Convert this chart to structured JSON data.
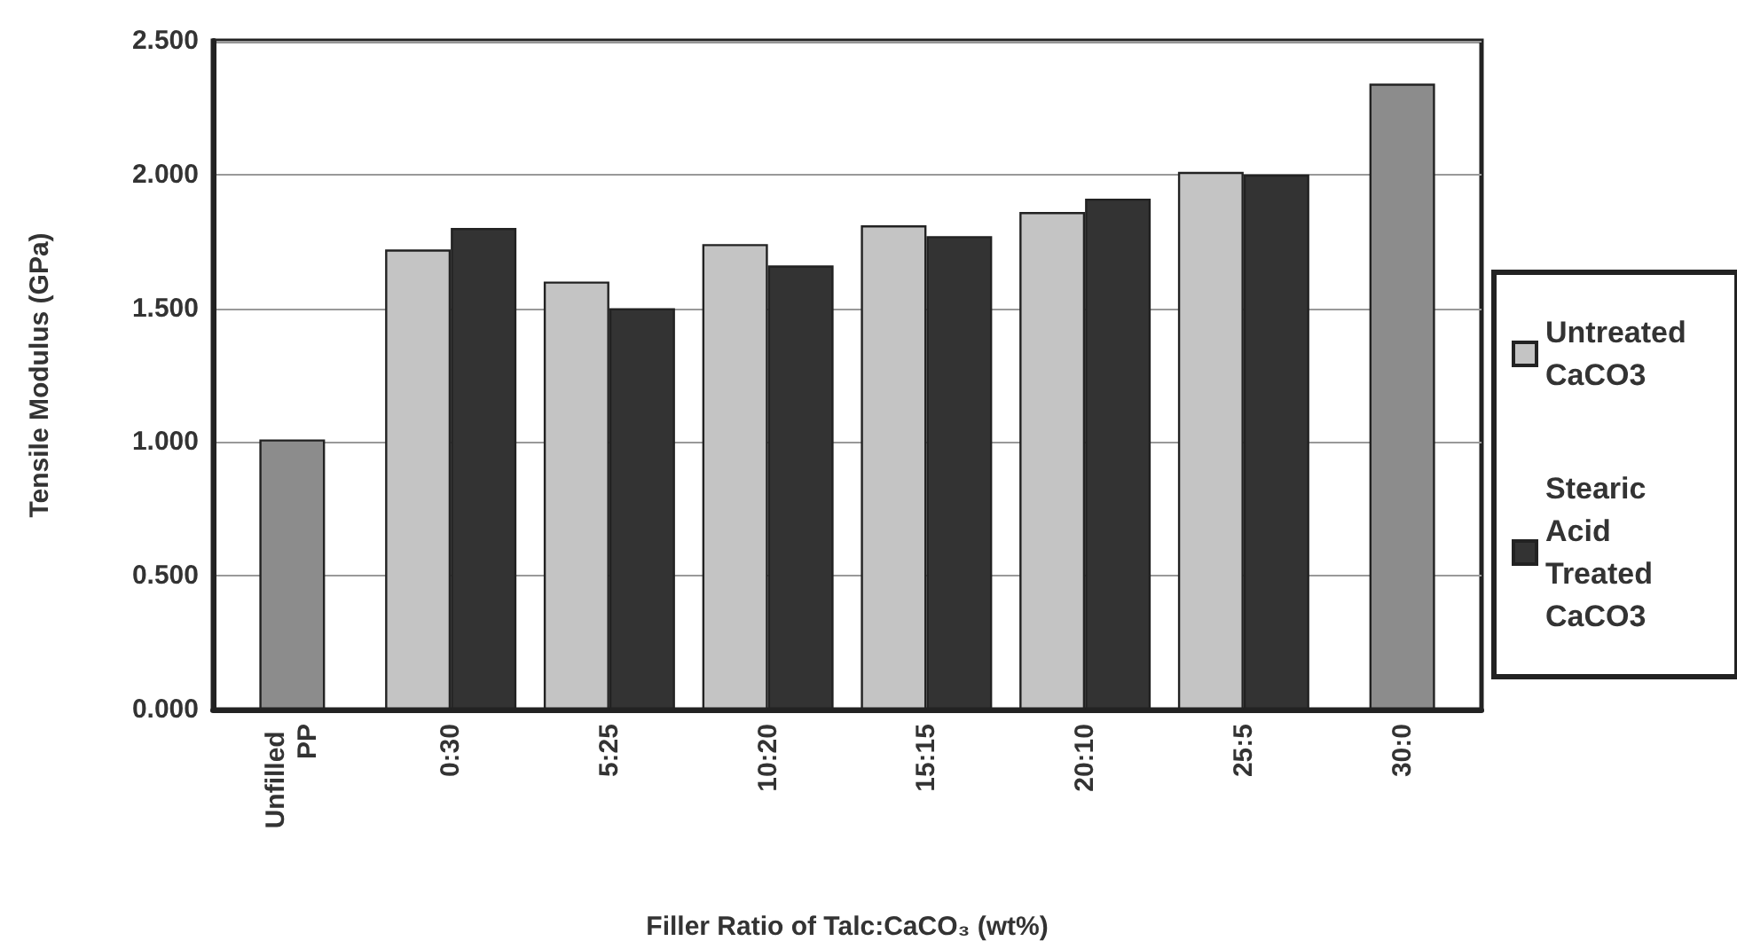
{
  "chart_data": {
    "type": "bar",
    "xlabel": "Filler Ratio of Talc:CaCO₃ (wt%)",
    "ylabel": "Tensile Modulus (GPa)",
    "categories": [
      "Unfilled PP",
      "0:30",
      "5:25",
      "10:20",
      "15:15",
      "20:10",
      "25:5",
      "30:0"
    ],
    "series": [
      {
        "name": "Untreated CaCO3",
        "color": "#c4c4c4",
        "values": [
          null,
          1.72,
          1.6,
          1.74,
          1.81,
          1.86,
          2.01,
          null
        ]
      },
      {
        "name": "Stearic Acid Treated CaCO3",
        "color": "#333333",
        "values": [
          null,
          1.8,
          1.5,
          1.66,
          1.77,
          1.91,
          2.0,
          null
        ]
      },
      {
        "color": "#8c8c8c",
        "values": [
          1.01,
          null,
          null,
          null,
          null,
          null,
          null,
          2.34
        ]
      }
    ],
    "ylim": [
      0,
      2.5
    ],
    "yticks": [
      {
        "value": 0,
        "label": "0.000"
      },
      {
        "value": 0.5,
        "label": "0.500"
      },
      {
        "value": 1,
        "label": "1.000"
      },
      {
        "value": 1.5,
        "label": "1.500"
      },
      {
        "value": 2,
        "label": "2.000"
      },
      {
        "value": 2.5,
        "label": "2.500"
      }
    ],
    "grid": "y",
    "legend": "right"
  }
}
